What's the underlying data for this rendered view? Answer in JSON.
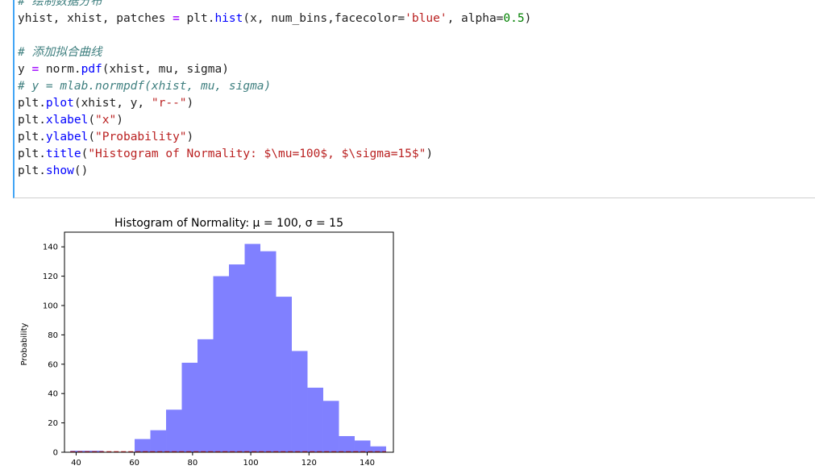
{
  "code_cell": {
    "lines": [
      {
        "kind": "comment",
        "text": "# 绘制数据分布"
      },
      {
        "kind": "tokens",
        "tokens": [
          [
            "sp",
            "yhist, xhist, patches "
          ],
          [
            "op",
            "="
          ],
          [
            "sp",
            " plt."
          ],
          [
            "fn",
            "hist"
          ],
          [
            "sp",
            "(x, num_bins,facecolor="
          ],
          [
            "str",
            "'blue'"
          ],
          [
            "sp",
            ", alpha="
          ],
          [
            "num",
            "0.5"
          ],
          [
            "sp",
            ")"
          ]
        ]
      },
      {
        "kind": "blank"
      },
      {
        "kind": "comment",
        "text": "# 添加拟合曲线"
      },
      {
        "kind": "tokens",
        "tokens": [
          [
            "sp",
            "y "
          ],
          [
            "op",
            "="
          ],
          [
            "sp",
            " norm."
          ],
          [
            "fn",
            "pdf"
          ],
          [
            "sp",
            "(xhist, mu, sigma)"
          ]
        ]
      },
      {
        "kind": "comment",
        "text": "# y = mlab.normpdf(xhist, mu, sigma)"
      },
      {
        "kind": "tokens",
        "tokens": [
          [
            "sp",
            "plt."
          ],
          [
            "fn",
            "plot"
          ],
          [
            "sp",
            "(xhist, y, "
          ],
          [
            "str",
            "\"r--\""
          ],
          [
            "sp",
            ")"
          ]
        ]
      },
      {
        "kind": "tokens",
        "tokens": [
          [
            "sp",
            "plt."
          ],
          [
            "fn",
            "xlabel"
          ],
          [
            "sp",
            "("
          ],
          [
            "str",
            "\"x\""
          ],
          [
            "sp",
            ")"
          ]
        ]
      },
      {
        "kind": "tokens",
        "tokens": [
          [
            "sp",
            "plt."
          ],
          [
            "fn",
            "ylabel"
          ],
          [
            "sp",
            "("
          ],
          [
            "str",
            "\"Probability\""
          ],
          [
            "sp",
            ")"
          ]
        ]
      },
      {
        "kind": "tokens",
        "tokens": [
          [
            "sp",
            "plt."
          ],
          [
            "fn",
            "title"
          ],
          [
            "sp",
            "("
          ],
          [
            "str",
            "\"Histogram of Normality: $\\mu=100$, $\\sigma=15$\""
          ],
          [
            "sp",
            ")"
          ]
        ]
      },
      {
        "kind": "tokens",
        "tokens": [
          [
            "sp",
            "plt."
          ],
          [
            "fn",
            "show"
          ],
          [
            "sp",
            "()"
          ]
        ]
      }
    ]
  },
  "chart_data": {
    "type": "bar",
    "title": "Histogram of Normality: μ = 100, σ = 15",
    "xlabel": "",
    "ylabel": "Probability",
    "xlim": [
      36,
      149
    ],
    "ylim": [
      0,
      150
    ],
    "xticks": [
      40,
      60,
      80,
      100,
      120,
      140
    ],
    "yticks": [
      0,
      20,
      40,
      60,
      80,
      100,
      120,
      140
    ],
    "bin_edges": [
      38,
      49.3,
      54.7,
      60.1,
      65.5,
      70.9,
      76.3,
      81.7,
      87.1,
      92.5,
      97.9,
      103.3,
      108.7,
      114.1,
      119.5,
      124.9,
      130.3,
      135.7,
      141.1,
      146.5
    ],
    "counts": [
      1,
      0,
      0,
      9,
      15,
      29,
      61,
      77,
      120,
      128,
      142,
      137,
      106,
      69,
      44,
      35,
      11,
      8,
      4
    ],
    "bar_color": "#8080ff",
    "fit_line": {
      "color": "#d62728",
      "style": "dashed",
      "y": 0.3
    }
  }
}
